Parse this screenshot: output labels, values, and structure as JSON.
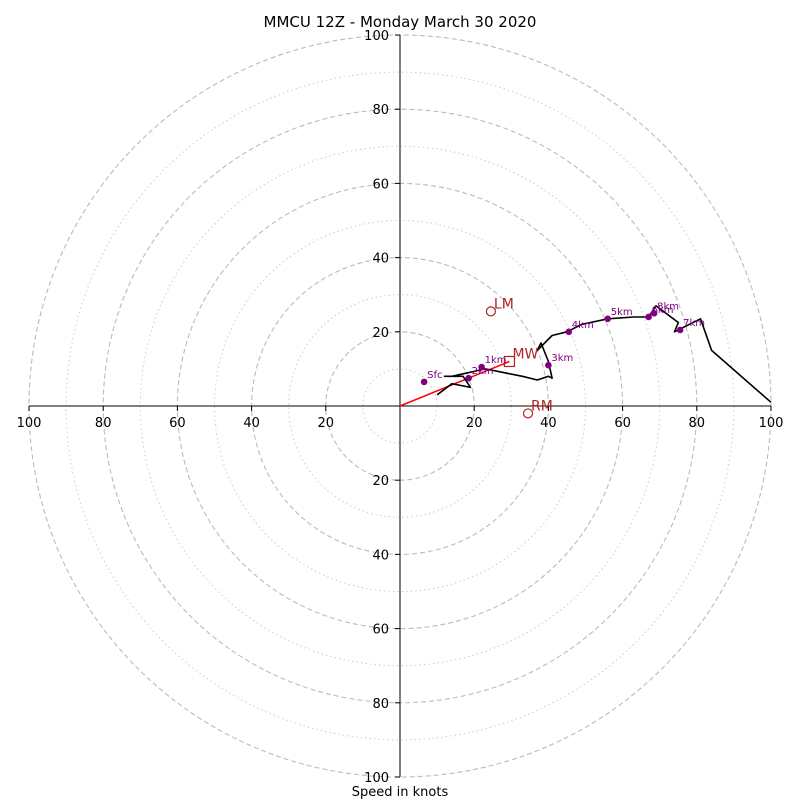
{
  "chart_data": {
    "type": "scatter",
    "title": "MMCU 12Z - Monday March 30 2020",
    "xlabel": "Speed in knots",
    "ylabel": "",
    "xlim": [
      -100,
      100
    ],
    "ylim": [
      -100,
      100
    ],
    "ring_labels": [
      "100",
      "80",
      "60",
      "40",
      "20"
    ],
    "ring_values": [
      100,
      80,
      60,
      40,
      20
    ],
    "minor_ring_values": [
      10,
      30,
      50,
      70,
      90
    ],
    "x_tick_labels": [
      {
        "v": -100,
        "t": "100"
      },
      {
        "v": -80,
        "t": "80"
      },
      {
        "v": -60,
        "t": "60"
      },
      {
        "v": -40,
        "t": "40"
      },
      {
        "v": -20,
        "t": "20"
      },
      {
        "v": 20,
        "t": "20"
      },
      {
        "v": 40,
        "t": "40"
      },
      {
        "v": 60,
        "t": "60"
      },
      {
        "v": 80,
        "t": "80"
      },
      {
        "v": 100,
        "t": "100"
      }
    ],
    "y_tick_labels": [
      {
        "v": 100,
        "t": "100"
      },
      {
        "v": 80,
        "t": "80"
      },
      {
        "v": 60,
        "t": "60"
      },
      {
        "v": 40,
        "t": "40"
      },
      {
        "v": 20,
        "t": "20"
      },
      {
        "v": -20,
        "t": "20"
      },
      {
        "v": -40,
        "t": "40"
      },
      {
        "v": -60,
        "t": "60"
      },
      {
        "v": -80,
        "t": "80"
      },
      {
        "v": -100,
        "t": "100"
      }
    ],
    "hodograph_line": [
      [
        10,
        3
      ],
      [
        14,
        6
      ],
      [
        19,
        5
      ],
      [
        17,
        8
      ],
      [
        12,
        8
      ],
      [
        14,
        8
      ],
      [
        23,
        10
      ],
      [
        33,
        8
      ],
      [
        37,
        7
      ],
      [
        40,
        8
      ],
      [
        41,
        7.5
      ],
      [
        40,
        12
      ],
      [
        38,
        17
      ],
      [
        37,
        15
      ],
      [
        41,
        19
      ],
      [
        45,
        20
      ],
      [
        49,
        22
      ],
      [
        56,
        23.5
      ],
      [
        63,
        24
      ],
      [
        67,
        24
      ],
      [
        69,
        27
      ],
      [
        75,
        22.5
      ],
      [
        74,
        20
      ],
      [
        81,
        23.5
      ],
      [
        84,
        15
      ],
      [
        100,
        1
      ]
    ],
    "height_markers": [
      {
        "label": "Sfc",
        "x": 6.5,
        "y": 6.5
      },
      {
        "label": "2km",
        "x": 18.5,
        "y": 7.5
      },
      {
        "label": "1km",
        "x": 22,
        "y": 10.5
      },
      {
        "label": "3km",
        "x": 40,
        "y": 11
      },
      {
        "label": "4km",
        "x": 45.5,
        "y": 20
      },
      {
        "label": "5km",
        "x": 56,
        "y": 23.5
      },
      {
        "label": "6km",
        "x": 67,
        "y": 24
      },
      {
        "label": "8km",
        "x": 68.5,
        "y": 25
      },
      {
        "label": "7km",
        "x": 75.5,
        "y": 20.5
      }
    ],
    "motion_markers": [
      {
        "label": "LM",
        "x": 24.5,
        "y": 25.5,
        "shape": "circle"
      },
      {
        "label": "MW",
        "x": 29.5,
        "y": 12,
        "shape": "square"
      },
      {
        "label": "RM",
        "x": 34.5,
        "y": -2,
        "shape": "circle"
      }
    ],
    "mean_wind_vector": [
      29.5,
      12
    ],
    "colors": {
      "ring": "#bbbbbb",
      "minor_ring": "#cccccc",
      "hodograph": "#000000",
      "height_marker": "#800080",
      "motion_marker": "#b22222",
      "vector": "#ff0000"
    }
  }
}
